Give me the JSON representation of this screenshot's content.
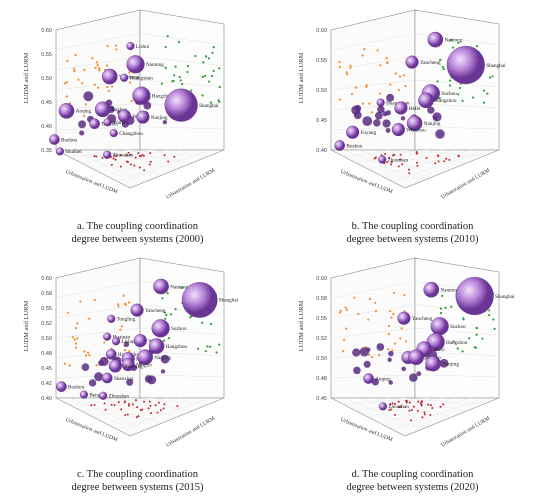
{
  "chart_data": [
    {
      "type": "scatter",
      "caption_line1": "a. The coupling coordination",
      "caption_line2": "degree between systems (2000)",
      "zlabel": "LUDM and LURM",
      "xlabel": "Urbanization and LUDM",
      "ylabel": "Urbanization and LURM",
      "zlim": [
        0.35,
        0.6
      ],
      "z_ticks": [
        "0.60",
        "0.55",
        "0.50",
        "0.45",
        "0.40",
        "0.35"
      ],
      "cities": [
        {
          "name": "Lishui",
          "x": 0.48,
          "y": 0.6,
          "z": 0.58,
          "size": 2
        },
        {
          "name": "Nantong",
          "x": 0.5,
          "y": 0.56,
          "z": 0.55,
          "size": 6
        },
        {
          "name": "Yancheng",
          "x": 0.44,
          "y": 0.54,
          "z": 0.53,
          "size": 5
        },
        {
          "name": "Huangshan",
          "x": 0.47,
          "y": 0.57,
          "z": 0.52,
          "size": 2
        },
        {
          "name": "Hangzhou",
          "x": 0.52,
          "y": 0.53,
          "z": 0.49,
          "size": 6
        },
        {
          "name": "Shanghai",
          "x": 0.62,
          "y": 0.52,
          "z": 0.47,
          "size": 12
        },
        {
          "name": "Anqing",
          "x": 0.35,
          "y": 0.45,
          "z": 0.48,
          "size": 5
        },
        {
          "name": "Suzhou",
          "x": 0.43,
          "y": 0.5,
          "z": 0.47,
          "size": 5
        },
        {
          "name": "Wuxi",
          "x": 0.48,
          "y": 0.52,
          "z": 0.45,
          "size": 4
        },
        {
          "name": "Nanjing",
          "x": 0.52,
          "y": 0.55,
          "z": 0.44,
          "size": 4
        },
        {
          "name": "Taizhou",
          "x": 0.41,
          "y": 0.5,
          "z": 0.44,
          "size": 3
        },
        {
          "name": "Wuhu",
          "x": 0.44,
          "y": 0.51,
          "z": 0.44,
          "size": 2
        },
        {
          "name": "Bozhou",
          "x": 0.32,
          "y": 0.45,
          "z": 0.42,
          "size": 3
        },
        {
          "name": "Changzhou",
          "x": 0.45,
          "y": 0.54,
          "z": 0.41,
          "size": 2
        },
        {
          "name": "Huaibei",
          "x": 0.33,
          "y": 0.47,
          "z": 0.39,
          "size": 2
        },
        {
          "name": "Zhoushan",
          "x": 0.43,
          "y": 0.56,
          "z": 0.36,
          "size": 2
        }
      ]
    },
    {
      "type": "scatter",
      "caption_line1": "b. The coupling coordination",
      "caption_line2": "degree between systems (2010)",
      "zlabel": "LUDM and LURM",
      "xlabel": "Urbanization and LUDM",
      "ylabel": "Urbanization and LURM",
      "zlim": [
        0.4,
        0.6
      ],
      "z_ticks": [
        "0.60",
        "0.55",
        "0.50",
        "0.45",
        "0.40"
      ],
      "cities": [
        {
          "name": "Nantong",
          "x": 0.55,
          "y": 0.62,
          "z": 0.59,
          "size": 5
        },
        {
          "name": "Yancheng",
          "x": 0.5,
          "y": 0.58,
          "z": 0.56,
          "size": 4
        },
        {
          "name": "Shanghai",
          "x": 0.64,
          "y": 0.54,
          "z": 0.56,
          "size": 14
        },
        {
          "name": "Suzhou",
          "x": 0.55,
          "y": 0.56,
          "z": 0.51,
          "size": 6
        },
        {
          "name": "Hangzhou",
          "x": 0.54,
          "y": 0.55,
          "z": 0.5,
          "size": 5
        },
        {
          "name": "Huangshan",
          "x": 0.43,
          "y": 0.54,
          "z": 0.5,
          "size": 2
        },
        {
          "name": "Hefei",
          "x": 0.48,
          "y": 0.54,
          "z": 0.49,
          "size": 4
        },
        {
          "name": "Fuyang",
          "x": 0.37,
          "y": 0.49,
          "z": 0.46,
          "size": 4
        },
        {
          "name": "Nanjing",
          "x": 0.51,
          "y": 0.56,
          "z": 0.46,
          "size": 5
        },
        {
          "name": "Wenzhou",
          "x": 0.47,
          "y": 0.56,
          "z": 0.45,
          "size": 4
        },
        {
          "name": "Bozhou",
          "x": 0.34,
          "y": 0.48,
          "z": 0.44,
          "size": 3
        },
        {
          "name": "Zhoushan",
          "x": 0.43,
          "y": 0.56,
          "z": 0.4,
          "size": 2
        }
      ]
    },
    {
      "type": "scatter",
      "caption_line1": "c. The coupling coordination",
      "caption_line2": "degree between systems (2015)",
      "zlabel": "LUDM and LURM",
      "xlabel": "Urbanization and LUDM",
      "ylabel": "Urbanization and LURM",
      "zlim": [
        0.4,
        0.6
      ],
      "z_ticks": [
        "0.60",
        "0.58",
        "0.55",
        "0.52",
        "0.50",
        "0.48",
        "0.45",
        "0.42",
        "0.40"
      ],
      "cities": [
        {
          "name": "Nantong",
          "x": 0.55,
          "y": 0.63,
          "z": 0.59,
          "size": 5
        },
        {
          "name": "Shanghai",
          "x": 0.66,
          "y": 0.55,
          "z": 0.58,
          "size": 13
        },
        {
          "name": "Yancheng",
          "x": 0.5,
          "y": 0.58,
          "z": 0.56,
          "size": 4
        },
        {
          "name": "Tongling",
          "x": 0.44,
          "y": 0.56,
          "z": 0.55,
          "size": 2
        },
        {
          "name": "Suzhou",
          "x": 0.56,
          "y": 0.57,
          "z": 0.53,
          "size": 6
        },
        {
          "name": "Huainan",
          "x": 0.43,
          "y": 0.56,
          "z": 0.52,
          "size": 2
        },
        {
          "name": "Lishui",
          "x": 0.45,
          "y": 0.57,
          "z": 0.51,
          "size": 2
        },
        {
          "name": "Wuxi",
          "x": 0.51,
          "y": 0.57,
          "z": 0.51,
          "size": 4
        },
        {
          "name": "Hangzhou",
          "x": 0.55,
          "y": 0.57,
          "z": 0.5,
          "size": 5
        },
        {
          "name": "Huangshan",
          "x": 0.44,
          "y": 0.56,
          "z": 0.49,
          "size": 3
        },
        {
          "name": "Hefei",
          "x": 0.48,
          "y": 0.57,
          "z": 0.48,
          "size": 4
        },
        {
          "name": "Nanjing",
          "x": 0.52,
          "y": 0.58,
          "z": 0.48,
          "size": 5
        },
        {
          "name": "Ningbo",
          "x": 0.48,
          "y": 0.57,
          "z": 0.47,
          "size": 4
        },
        {
          "name": "Shaoxing",
          "x": 0.45,
          "y": 0.56,
          "z": 0.47,
          "size": 4
        },
        {
          "name": "Bozhou",
          "x": 0.33,
          "y": 0.49,
          "z": 0.45,
          "size": 3
        },
        {
          "name": "Shaoxing",
          "x": 0.43,
          "y": 0.56,
          "z": 0.45,
          "size": 3
        },
        {
          "name": "Bengbu",
          "x": 0.38,
          "y": 0.52,
          "z": 0.43,
          "size": 2
        },
        {
          "name": "Zhoushan",
          "x": 0.42,
          "y": 0.56,
          "z": 0.42,
          "size": 2
        }
      ]
    },
    {
      "type": "scatter",
      "caption_line1": "d. The coupling coordination",
      "caption_line2": "degree between systems (2020)",
      "zlabel": "LUDM and LURM",
      "xlabel": "Urbanization and LUDM",
      "ylabel": "Urbanization and LURM",
      "zlim": [
        0.45,
        0.6
      ],
      "z_ticks": [
        "0.60",
        "0.58",
        "0.55",
        "0.52",
        "0.50",
        "0.48",
        "0.45"
      ],
      "cities": [
        {
          "name": "Nantong",
          "x": 0.54,
          "y": 0.62,
          "z": 0.59,
          "size": 5
        },
        {
          "name": "Shanghai",
          "x": 0.66,
          "y": 0.55,
          "z": 0.59,
          "size": 14
        },
        {
          "name": "Yancheng",
          "x": 0.48,
          "y": 0.58,
          "z": 0.56,
          "size": 4
        },
        {
          "name": "Suzhou",
          "x": 0.57,
          "y": 0.57,
          "z": 0.55,
          "size": 6
        },
        {
          "name": "Hangzhou",
          "x": 0.56,
          "y": 0.57,
          "z": 0.53,
          "size": 6
        },
        {
          "name": "Wuxi",
          "x": 0.53,
          "y": 0.58,
          "z": 0.52,
          "size": 5
        },
        {
          "name": "Yuyao",
          "x": 0.49,
          "y": 0.58,
          "z": 0.51,
          "size": 4
        },
        {
          "name": "Ningbo",
          "x": 0.51,
          "y": 0.58,
          "z": 0.51,
          "size": 5
        },
        {
          "name": "Nanjing",
          "x": 0.55,
          "y": 0.59,
          "z": 0.5,
          "size": 5
        },
        {
          "name": "Anqing",
          "x": 0.4,
          "y": 0.54,
          "z": 0.49,
          "size": 3
        },
        {
          "name": "Zhoushan",
          "x": 0.43,
          "y": 0.57,
          "z": 0.45,
          "size": 2
        }
      ]
    }
  ]
}
